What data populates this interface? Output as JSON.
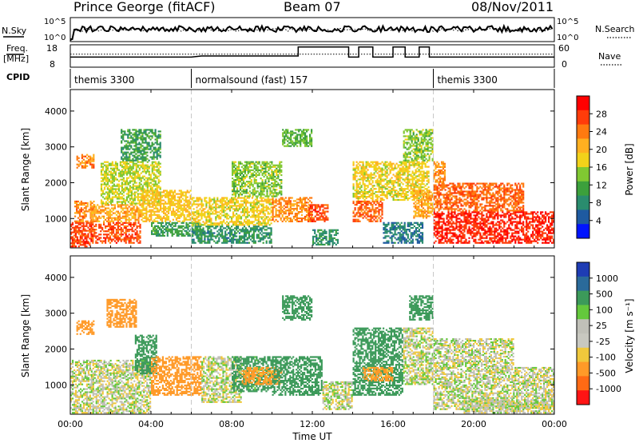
{
  "header": {
    "station": "Prince George (fitACF)",
    "beam": "Beam 07",
    "date": "08/Nov/2011"
  },
  "top_panels": {
    "nsky_label": "N.Sky",
    "nsky_ticks": [
      "10^5",
      "10^0"
    ],
    "nsearch_label": "N.Search",
    "nsearch_ticks": [
      "10^5",
      "10^0"
    ],
    "freq_label": "Freq.",
    "freq_unit": "[MHz]",
    "freq_ticks": [
      "18",
      "8"
    ],
    "nave_label": "Nave",
    "nave_ticks": [
      "60",
      "0"
    ],
    "cpid_label": "CPID"
  },
  "cpid_segments": [
    {
      "start_hour": 0,
      "end_hour": 6,
      "label": "themis 3300"
    },
    {
      "start_hour": 6,
      "end_hour": 18,
      "label": "normalsound (fast) 157"
    },
    {
      "start_hour": 18,
      "end_hour": 24,
      "label": "themis 3300"
    }
  ],
  "power_colorbar": {
    "title": "Power [dB]",
    "ticks": [
      "28",
      "24",
      "20",
      "16",
      "12",
      "8",
      "4"
    ],
    "colors": [
      "#ff0000",
      "#ff3c0a",
      "#ff7a10",
      "#ffb020",
      "#f2d21a",
      "#80c832",
      "#3ca03c",
      "#2a8c6e",
      "#1e5aa0",
      "#0014ff"
    ]
  },
  "velocity_colorbar": {
    "title": "Velocity [m s⁻¹]",
    "ticks": [
      "1000",
      "500",
      "100",
      "25",
      "-25",
      "-100",
      "-500",
      "-1000"
    ],
    "colors": [
      "#1e3cb4",
      "#2a6a9a",
      "#3c9a5a",
      "#64c83c",
      "#c0c0b8",
      "#c8c8c0",
      "#f0c83c",
      "#ff9a28",
      "#ff6a14",
      "#ff1414"
    ]
  },
  "chart_data": {
    "type": "heatmap",
    "xlabel": "Time UT",
    "ylabel": "Slant Range [km]",
    "x_ticks": [
      "00:00",
      "04:00",
      "08:00",
      "12:00",
      "16:00",
      "20:00",
      "00:00"
    ],
    "x_range_hours": [
      0,
      24
    ],
    "y_ticks": [
      1000,
      2000,
      3000,
      4000
    ],
    "ylim_km": [
      180,
      4600
    ],
    "panels": [
      {
        "name": "Power",
        "quantity": "Power [dB]",
        "scatter_regions": [
          {
            "t0": 0.0,
            "t1": 1.0,
            "r0": 200,
            "r1": 900,
            "value": 28
          },
          {
            "t0": 0.2,
            "t1": 1.2,
            "r0": 900,
            "r1": 1500,
            "value": 24
          },
          {
            "t0": 0.3,
            "t1": 1.2,
            "r0": 2400,
            "r1": 2800,
            "value": 24
          },
          {
            "t0": 1.0,
            "t1": 3.5,
            "r0": 300,
            "r1": 900,
            "value": 28
          },
          {
            "t0": 1.0,
            "t1": 3.5,
            "r0": 900,
            "r1": 1400,
            "value": 22
          },
          {
            "t0": 1.5,
            "t1": 4.5,
            "r0": 1400,
            "r1": 2600,
            "value": 16
          },
          {
            "t0": 2.5,
            "t1": 4.5,
            "r0": 2600,
            "r1": 3500,
            "value": 10
          },
          {
            "t0": 3.5,
            "t1": 6.0,
            "r0": 900,
            "r1": 1800,
            "value": 20
          },
          {
            "t0": 4.0,
            "t1": 6.5,
            "r0": 500,
            "r1": 900,
            "value": 10
          },
          {
            "t0": 6.0,
            "t1": 10.0,
            "r0": 800,
            "r1": 1600,
            "value": 18
          },
          {
            "t0": 6.0,
            "t1": 10.0,
            "r0": 300,
            "r1": 800,
            "value": 8
          },
          {
            "t0": 8.0,
            "t1": 10.5,
            "r0": 1600,
            "r1": 2600,
            "value": 14
          },
          {
            "t0": 10.0,
            "t1": 12.0,
            "r0": 900,
            "r1": 1600,
            "value": 24
          },
          {
            "t0": 11.8,
            "t1": 12.8,
            "r0": 900,
            "r1": 1400,
            "value": 28
          },
          {
            "t0": 10.5,
            "t1": 12.0,
            "r0": 3000,
            "r1": 3500,
            "value": 12
          },
          {
            "t0": 12.0,
            "t1": 13.3,
            "r0": 250,
            "r1": 700,
            "value": 8
          },
          {
            "t0": 14.0,
            "t1": 15.5,
            "r0": 900,
            "r1": 1500,
            "value": 26
          },
          {
            "t0": 14.0,
            "t1": 17.8,
            "r0": 1500,
            "r1": 2600,
            "value": 18
          },
          {
            "t0": 15.5,
            "t1": 17.5,
            "r0": 300,
            "r1": 900,
            "value": 6
          },
          {
            "t0": 16.5,
            "t1": 18.0,
            "r0": 2600,
            "r1": 3500,
            "value": 14
          },
          {
            "t0": 17.0,
            "t1": 18.0,
            "r0": 1000,
            "r1": 1800,
            "value": 22
          },
          {
            "t0": 18.0,
            "t1": 24.0,
            "r0": 300,
            "r1": 1200,
            "value": 30
          },
          {
            "t0": 18.0,
            "t1": 22.5,
            "r0": 1200,
            "r1": 2000,
            "value": 26
          },
          {
            "t0": 18.0,
            "t1": 18.6,
            "r0": 2000,
            "r1": 2600,
            "value": 24
          }
        ]
      },
      {
        "name": "Velocity",
        "quantity": "Velocity [m s⁻¹]",
        "scatter_regions": [
          {
            "t0": 0.0,
            "t1": 4.0,
            "r0": 200,
            "r1": 1700,
            "value": 0
          },
          {
            "t0": 0.3,
            "t1": 1.2,
            "r0": 2400,
            "r1": 2800,
            "value": -300
          },
          {
            "t0": 1.8,
            "t1": 3.3,
            "r0": 2600,
            "r1": 3400,
            "value": -200
          },
          {
            "t0": 3.2,
            "t1": 4.3,
            "r0": 1300,
            "r1": 2400,
            "value": 200
          },
          {
            "t0": 4.0,
            "t1": 6.5,
            "r0": 700,
            "r1": 1800,
            "value": -200
          },
          {
            "t0": 6.5,
            "t1": 8.5,
            "r0": 500,
            "r1": 1800,
            "value": 0
          },
          {
            "t0": 8.0,
            "t1": 10.0,
            "r0": 800,
            "r1": 1800,
            "value": 150
          },
          {
            "t0": 8.5,
            "t1": 10.5,
            "r0": 1000,
            "r1": 1500,
            "value": -150
          },
          {
            "t0": 10.0,
            "t1": 12.5,
            "r0": 700,
            "r1": 1800,
            "value": 300
          },
          {
            "t0": 10.5,
            "t1": 12.0,
            "r0": 2800,
            "r1": 3500,
            "value": 300
          },
          {
            "t0": 12.5,
            "t1": 14.0,
            "r0": 300,
            "r1": 1100,
            "value": 0
          },
          {
            "t0": 14.0,
            "t1": 16.5,
            "r0": 700,
            "r1": 2600,
            "value": 200
          },
          {
            "t0": 14.5,
            "t1": 16.0,
            "r0": 1100,
            "r1": 1500,
            "value": -150
          },
          {
            "t0": 16.5,
            "t1": 18.0,
            "r0": 1000,
            "r1": 2600,
            "value": 0
          },
          {
            "t0": 16.8,
            "t1": 18.0,
            "r0": 2800,
            "r1": 3500,
            "value": 200
          },
          {
            "t0": 18.0,
            "t1": 24.0,
            "r0": 300,
            "r1": 1500,
            "value": 0
          },
          {
            "t0": 18.0,
            "t1": 22.0,
            "r0": 1500,
            "r1": 2300,
            "value": 0
          },
          {
            "t0": 19.5,
            "t1": 24.0,
            "r0": 200,
            "r1": 600,
            "value": 0
          }
        ]
      }
    ]
  }
}
